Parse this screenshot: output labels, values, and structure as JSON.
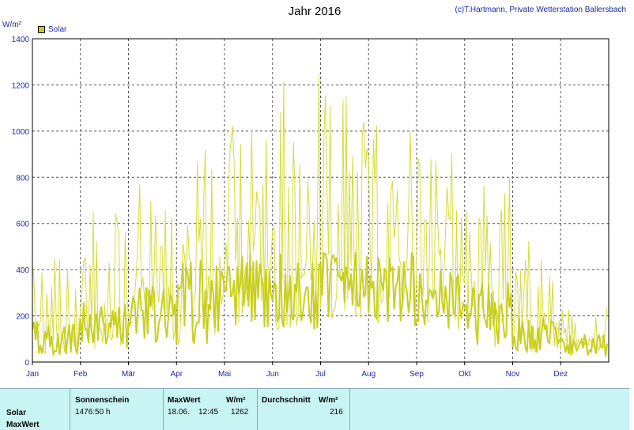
{
  "header": {
    "title": "Jahr 2016",
    "credit": "(c)T.Hartmann, Private Wetterstation Ballersbach",
    "y_unit": "W/m²"
  },
  "chart_data": {
    "type": "line",
    "title": "Jahr 2016",
    "ylabel": "W/m²",
    "ylim": [
      0,
      1400
    ],
    "grid": true,
    "legend_position": "top-left",
    "y_ticks": [
      "0",
      "200",
      "400",
      "600",
      "800",
      "1000",
      "1200",
      "1400"
    ],
    "x_ticks": [
      "Jan",
      "Feb",
      "Mär",
      "Apr",
      "Mai",
      "Jun",
      "Jul",
      "Aug",
      "Sep",
      "Okt",
      "Nov",
      "Dez"
    ],
    "series": [
      {
        "name": "Solar",
        "color": "#c9cf1f",
        "description_monthly_daily_peak_range": [
          {
            "month": "Jan",
            "peak_low": 60,
            "peak_high": 460,
            "daily_low": 30,
            "daily_high": 180
          },
          {
            "month": "Feb",
            "peak_low": 100,
            "peak_high": 660,
            "daily_low": 40,
            "daily_high": 260
          },
          {
            "month": "Mär",
            "peak_low": 150,
            "peak_high": 800,
            "daily_low": 80,
            "daily_high": 330
          },
          {
            "month": "Apr",
            "peak_low": 200,
            "peak_high": 1000,
            "daily_low": 70,
            "daily_high": 450
          },
          {
            "month": "Mai",
            "peak_low": 400,
            "peak_high": 1170,
            "daily_low": 150,
            "daily_high": 480
          },
          {
            "month": "Jun",
            "peak_low": 250,
            "peak_high": 1260,
            "daily_low": 140,
            "daily_high": 470
          },
          {
            "month": "Jul",
            "peak_low": 600,
            "peak_high": 1240,
            "daily_low": 180,
            "daily_high": 480
          },
          {
            "month": "Aug",
            "peak_low": 400,
            "peak_high": 1090,
            "daily_low": 150,
            "daily_high": 480
          },
          {
            "month": "Sep",
            "peak_low": 450,
            "peak_high": 920,
            "daily_low": 130,
            "daily_high": 400
          },
          {
            "month": "Okt",
            "peak_low": 200,
            "peak_high": 810,
            "daily_low": 60,
            "daily_high": 360
          },
          {
            "month": "Nov",
            "peak_low": 100,
            "peak_high": 560,
            "daily_low": 40,
            "daily_high": 200
          },
          {
            "month": "Dez",
            "peak_low": 50,
            "peak_high": 260,
            "daily_low": 20,
            "daily_high": 120
          }
        ]
      }
    ]
  },
  "stats_table": {
    "headers": {
      "sunshine": "Sonnenschein",
      "maxwert": "MaxWert",
      "maxwert_unit": "W/m²",
      "average": "Durchschnitt",
      "average_unit": "W/m²"
    },
    "rows": [
      {
        "label": "Solar",
        "sunshine": "1476:50 h",
        "max_date": "18.06.",
        "max_time": "12:45",
        "max_value": "1262",
        "average": "216"
      },
      {
        "label": "MaxWert"
      }
    ]
  }
}
